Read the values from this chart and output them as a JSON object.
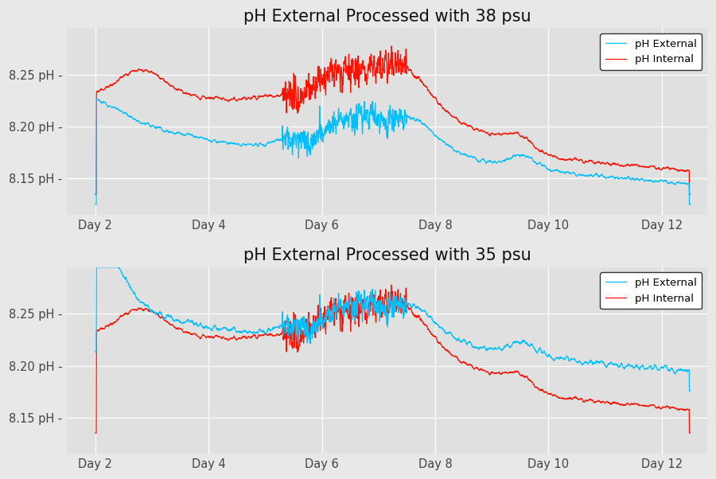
{
  "title_top": "pH External Processed with 38 psu",
  "title_bottom": "pH External Processed with 35 psu",
  "title_fontsize": 15,
  "title_color": "#111111",
  "background_color": "#e8e8e8",
  "plot_bg_color": "#e0e0e0",
  "external_color": "#00bfff",
  "internal_color": "#ff1100",
  "legend_labels": [
    "pH External",
    "pH Internal"
  ],
  "yticks": [
    8.15,
    8.2,
    8.25
  ],
  "ytick_labels": [
    "8.15 pH -",
    "8.20 pH -",
    "8.25 pH -"
  ],
  "xtick_labels": [
    "Day 2",
    "Day 4",
    "Day 6",
    "Day 8",
    "Day 10",
    "Day 12"
  ],
  "xtick_positions": [
    2,
    4,
    6,
    8,
    10,
    12
  ],
  "xlim": [
    1.5,
    12.8
  ],
  "ylim": [
    8.115,
    8.295
  ]
}
